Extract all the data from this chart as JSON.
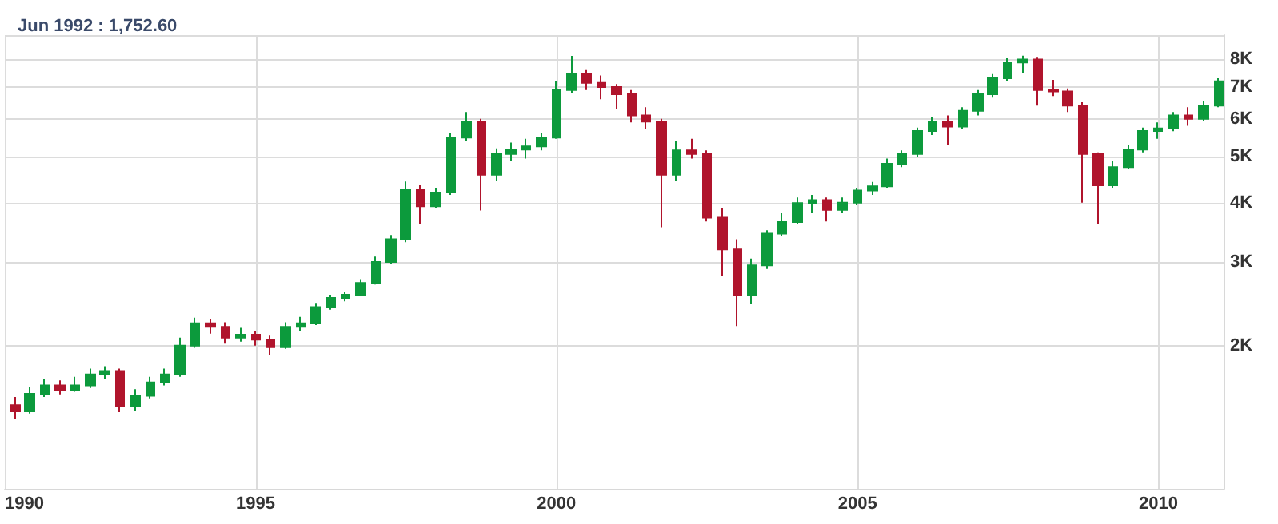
{
  "chart_data": {
    "type": "candlestick",
    "annotations": [
      "Jun 1992 : 1,752.60"
    ],
    "x": [
      "1991-01",
      "1991-04",
      "1991-07",
      "1991-10",
      "1992-01",
      "1992-04",
      "1992-07",
      "1992-10",
      "1993-01",
      "1993-04",
      "1993-07",
      "1993-10",
      "1994-01",
      "1994-04",
      "1994-07",
      "1994-10",
      "1995-01",
      "1995-04",
      "1995-07",
      "1995-10",
      "1996-01",
      "1996-04",
      "1996-07",
      "1996-10",
      "1997-01",
      "1997-04",
      "1997-07",
      "1997-10",
      "1998-01",
      "1998-04",
      "1998-07",
      "1998-10",
      "1999-01",
      "1999-04",
      "1999-07",
      "1999-10",
      "2000-01",
      "2000-04",
      "2000-07",
      "2000-10",
      "2001-01",
      "2001-04",
      "2001-07",
      "2001-10",
      "2002-01",
      "2002-04",
      "2002-07",
      "2002-10",
      "2003-01",
      "2003-04",
      "2003-07",
      "2003-10",
      "2004-01",
      "2004-04",
      "2004-07",
      "2004-10",
      "2005-01",
      "2005-04",
      "2005-07",
      "2005-10",
      "2006-01",
      "2006-04",
      "2006-07",
      "2006-10",
      "2007-01",
      "2007-04",
      "2007-07",
      "2007-10",
      "2008-01",
      "2008-04",
      "2008-07",
      "2008-10",
      "2009-01",
      "2009-04",
      "2009-07",
      "2009-10",
      "2010-01",
      "2010-04",
      "2010-07",
      "2010-10",
      "2011-01"
    ],
    "ohlc": [
      [
        1500,
        1560,
        1400,
        1455
      ],
      [
        1455,
        1640,
        1440,
        1585
      ],
      [
        1585,
        1700,
        1560,
        1650
      ],
      [
        1650,
        1690,
        1580,
        1610
      ],
      [
        1610,
        1720,
        1600,
        1650
      ],
      [
        1650,
        1790,
        1630,
        1740
      ],
      [
        1740,
        1810,
        1700,
        1770
      ],
      [
        1770,
        1790,
        1450,
        1490
      ],
      [
        1490,
        1620,
        1460,
        1570
      ],
      [
        1570,
        1720,
        1550,
        1675
      ],
      [
        1675,
        1790,
        1650,
        1740
      ],
      [
        1740,
        2080,
        1720,
        2000
      ],
      [
        2000,
        2290,
        1980,
        2230
      ],
      [
        2230,
        2280,
        2120,
        2190
      ],
      [
        2190,
        2240,
        2020,
        2080
      ],
      [
        2080,
        2180,
        2040,
        2110
      ],
      [
        2110,
        2150,
        2000,
        2060
      ],
      [
        2060,
        2100,
        1910,
        1985
      ],
      [
        1985,
        2240,
        1970,
        2190
      ],
      [
        2190,
        2300,
        2150,
        2230
      ],
      [
        2230,
        2460,
        2210,
        2410
      ],
      [
        2410,
        2560,
        2380,
        2520
      ],
      [
        2520,
        2600,
        2480,
        2560
      ],
      [
        2560,
        2760,
        2540,
        2710
      ],
      [
        2710,
        3080,
        2690,
        3000
      ],
      [
        3000,
        3420,
        2970,
        3350
      ],
      [
        3350,
        4430,
        3300,
        4250
      ],
      [
        4250,
        4350,
        3600,
        3930
      ],
      [
        3930,
        4300,
        3900,
        4200
      ],
      [
        4200,
        5600,
        4150,
        5480
      ],
      [
        5480,
        6200,
        5400,
        5920
      ],
      [
        5920,
        6000,
        3850,
        4580
      ],
      [
        4580,
        5200,
        4450,
        5060
      ],
      [
        5060,
        5350,
        4900,
        5170
      ],
      [
        5170,
        5450,
        4950,
        5250
      ],
      [
        5250,
        5600,
        5150,
        5480
      ],
      [
        5480,
        7200,
        5450,
        6900
      ],
      [
        6900,
        8140,
        6800,
        7470
      ],
      [
        7470,
        7600,
        6900,
        7140
      ],
      [
        7140,
        7400,
        6600,
        7000
      ],
      [
        7000,
        7100,
        6300,
        6760
      ],
      [
        6760,
        6900,
        5900,
        6100
      ],
      [
        6100,
        6350,
        5700,
        5920
      ],
      [
        5920,
        6000,
        3550,
        4580
      ],
      [
        4580,
        5400,
        4450,
        5150
      ],
      [
        5150,
        5450,
        4950,
        5060
      ],
      [
        5060,
        5150,
        3650,
        3720
      ],
      [
        3720,
        3900,
        2800,
        3190
      ],
      [
        3190,
        3350,
        2200,
        2550
      ],
      [
        2550,
        3050,
        2450,
        2950
      ],
      [
        2950,
        3500,
        2900,
        3440
      ],
      [
        3440,
        3800,
        3400,
        3640
      ],
      [
        3640,
        4100,
        3600,
        3990
      ],
      [
        3990,
        4150,
        3800,
        4050
      ],
      [
        4050,
        4100,
        3650,
        3860
      ],
      [
        3860,
        4100,
        3800,
        4000
      ],
      [
        4000,
        4300,
        3950,
        4240
      ],
      [
        4240,
        4420,
        4150,
        4330
      ],
      [
        4330,
        4950,
        4300,
        4830
      ],
      [
        4830,
        5150,
        4750,
        5060
      ],
      [
        5060,
        5750,
        5000,
        5660
      ],
      [
        5660,
        6050,
        5550,
        5920
      ],
      [
        5920,
        6100,
        5300,
        5780
      ],
      [
        5780,
        6350,
        5700,
        6240
      ],
      [
        6240,
        6900,
        6100,
        6760
      ],
      [
        6760,
        7450,
        6650,
        7300
      ],
      [
        7300,
        8050,
        7200,
        7880
      ],
      [
        7880,
        8150,
        7500,
        8000
      ],
      [
        8000,
        8100,
        6400,
        6900
      ],
      [
        6900,
        7250,
        6700,
        6850
      ],
      [
        6850,
        6950,
        6200,
        6400
      ],
      [
        6400,
        6500,
        4000,
        5060
      ],
      [
        5060,
        5100,
        3600,
        4350
      ],
      [
        4350,
        4900,
        4300,
        4750
      ],
      [
        4750,
        5300,
        4700,
        5170
      ],
      [
        5170,
        5750,
        5100,
        5660
      ],
      [
        5660,
        5900,
        5450,
        5730
      ],
      [
        5730,
        6200,
        5650,
        6100
      ],
      [
        6100,
        6350,
        5800,
        6000
      ],
      [
        6000,
        6550,
        5950,
        6400
      ],
      [
        6400,
        7300,
        6350,
        7200
      ]
    ],
    "colors": [
      "#b0142c",
      "#0c9a3c",
      "#0c9a3c",
      "#b0142c",
      "#0c9a3c",
      "#0c9a3c",
      "#0c9a3c",
      "#b0142c",
      "#0c9a3c",
      "#0c9a3c",
      "#0c9a3c",
      "#0c9a3c",
      "#0c9a3c",
      "#b0142c",
      "#b0142c",
      "#0c9a3c",
      "#b0142c",
      "#b0142c",
      "#0c9a3c",
      "#0c9a3c",
      "#0c9a3c",
      "#0c9a3c",
      "#0c9a3c",
      "#0c9a3c",
      "#0c9a3c",
      "#0c9a3c",
      "#0c9a3c",
      "#b0142c",
      "#0c9a3c",
      "#0c9a3c",
      "#0c9a3c",
      "#b0142c",
      "#0c9a3c",
      "#0c9a3c",
      "#0c9a3c",
      "#0c9a3c",
      "#0c9a3c",
      "#0c9a3c",
      "#b0142c",
      "#b0142c",
      "#b0142c",
      "#b0142c",
      "#b0142c",
      "#b0142c",
      "#0c9a3c",
      "#b0142c",
      "#b0142c",
      "#b0142c",
      "#b0142c",
      "#0c9a3c",
      "#0c9a3c",
      "#0c9a3c",
      "#0c9a3c",
      "#0c9a3c",
      "#b0142c",
      "#0c9a3c",
      "#0c9a3c",
      "#0c9a3c",
      "#0c9a3c",
      "#0c9a3c",
      "#0c9a3c",
      "#0c9a3c",
      "#b0142c",
      "#0c9a3c",
      "#0c9a3c",
      "#0c9a3c",
      "#0c9a3c",
      "#0c9a3c",
      "#b0142c",
      "#b0142c",
      "#b0142c",
      "#b0142c",
      "#b0142c",
      "#0c9a3c",
      "#0c9a3c",
      "#0c9a3c",
      "#0c9a3c",
      "#0c9a3c",
      "#b0142c",
      "#0c9a3c",
      "#0c9a3c"
    ],
    "xlim": [
      "1990-11",
      "2011-02"
    ],
    "xticks": [
      {
        "value": "1990-11",
        "label": "1990"
      },
      "1995",
      "2000",
      "2005",
      "2010"
    ],
    "log": "y",
    "ylim": [
      1000,
      9000
    ],
    "yticks": [
      {
        "value": 2000,
        "label": "2K"
      },
      {
        "value": 3000,
        "label": "3K"
      },
      {
        "value": 4000,
        "label": "4K"
      },
      {
        "value": 5000,
        "label": "5K"
      },
      {
        "value": 6000,
        "label": "6K"
      },
      {
        "value": 7000,
        "label": "7K"
      },
      {
        "value": 8000,
        "label": "8K"
      },
      {
        "value": 9000,
        "label": null
      }
    ],
    "grid": true
  }
}
